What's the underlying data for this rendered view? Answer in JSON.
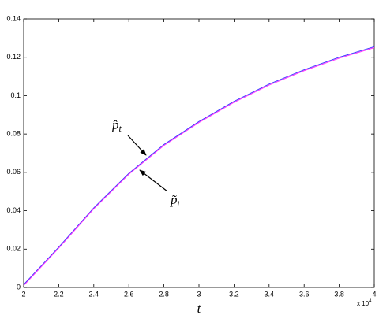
{
  "chart_data": {
    "type": "line",
    "x_label": "t",
    "x_multiplier": {
      "base": "x 10",
      "exponent": "4"
    },
    "x": [
      20000,
      22000,
      24000,
      26000,
      28000,
      30000,
      32000,
      34000,
      36000,
      38000,
      40000
    ],
    "series": [
      {
        "name": "p̂",
        "name_subscript": "t",
        "color": "#3b3bff",
        "values": [
          0.0015,
          0.021,
          0.0415,
          0.0595,
          0.0745,
          0.0865,
          0.097,
          0.106,
          0.1135,
          0.12,
          0.1255
        ]
      },
      {
        "name": "p̃",
        "name_subscript": "t",
        "color": "#ff33ff",
        "values": [
          0.001,
          0.0205,
          0.041,
          0.059,
          0.074,
          0.086,
          0.0965,
          0.1055,
          0.113,
          0.1195,
          0.125
        ]
      }
    ],
    "xlim": [
      20000,
      40000
    ],
    "xticks": [
      {
        "value": 20000,
        "label": "2"
      },
      {
        "value": 22000,
        "label": "2.2"
      },
      {
        "value": 24000,
        "label": "2.4"
      },
      {
        "value": 26000,
        "label": "2.6"
      },
      {
        "value": 28000,
        "label": "2.8"
      },
      {
        "value": 30000,
        "label": "3"
      },
      {
        "value": 32000,
        "label": "3.2"
      },
      {
        "value": 34000,
        "label": "3.4"
      },
      {
        "value": 36000,
        "label": "3.6"
      },
      {
        "value": 38000,
        "label": "3.8"
      },
      {
        "value": 40000,
        "label": "4"
      }
    ],
    "ylim": [
      0,
      0.14
    ],
    "yticks": [
      0,
      0.02,
      0.04,
      0.06,
      0.08,
      0.1,
      0.12,
      0.14
    ],
    "grid": false
  }
}
